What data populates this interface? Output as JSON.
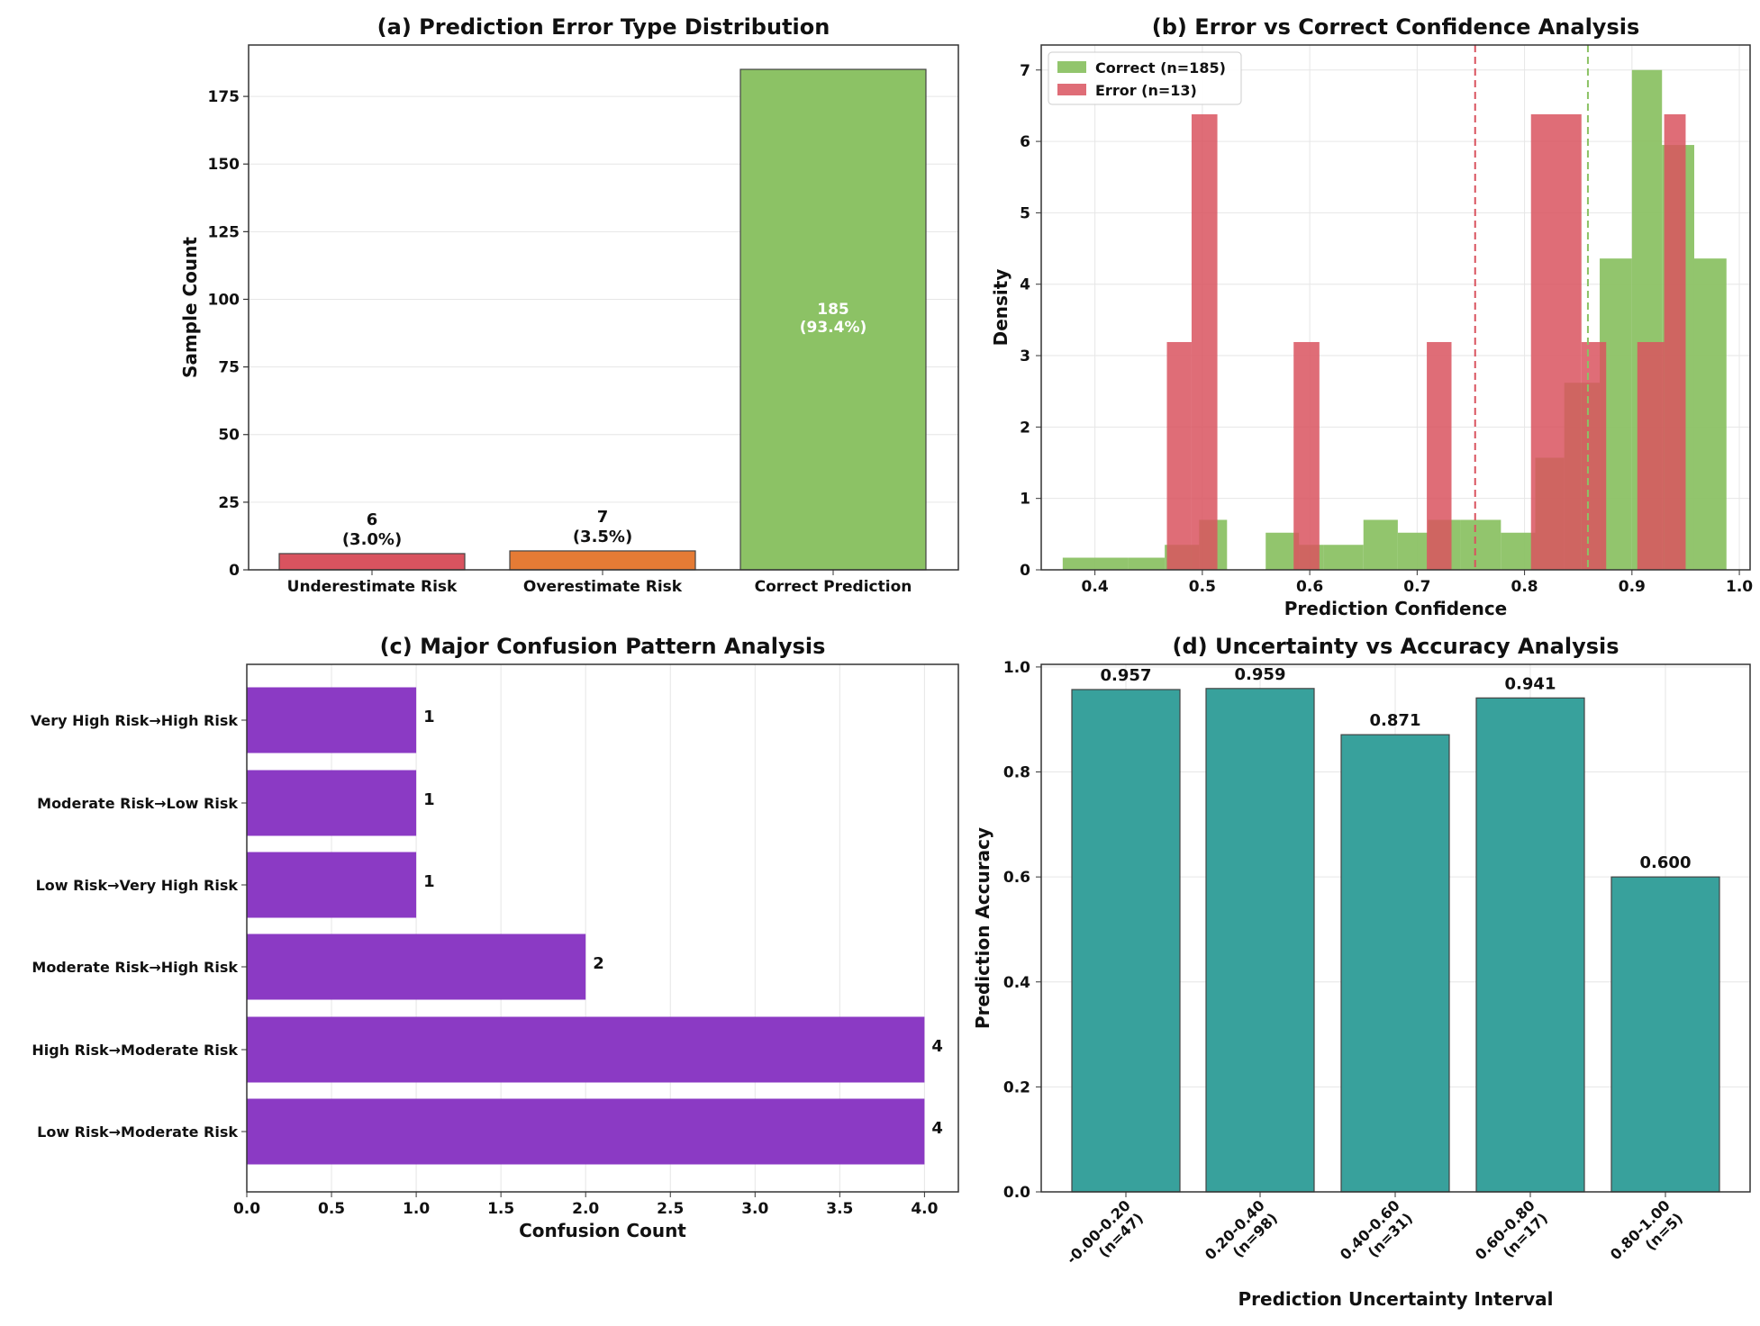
{
  "chart_data": [
    {
      "id": "a",
      "type": "bar",
      "title": "(a) Prediction Error Type Distribution",
      "xlabel": "",
      "ylabel": "Sample Count",
      "categories": [
        "Underestimate Risk",
        "Overestimate Risk",
        "Correct Prediction"
      ],
      "values": [
        6,
        7,
        185
      ],
      "value_labels": [
        [
          "6",
          "(3.0%)"
        ],
        [
          "7",
          "(3.5%)"
        ],
        [
          "185",
          "(93.4%)"
        ]
      ],
      "colors": [
        "#d9535f",
        "#e57b35",
        "#8cc265"
      ],
      "ylim": [
        0,
        194
      ],
      "yticks": [
        0,
        25,
        50,
        75,
        100,
        125,
        150,
        175
      ],
      "ytick_labels": [
        "0",
        "25",
        "50",
        "75",
        "100",
        "125",
        "150",
        "175"
      ],
      "grid": true
    },
    {
      "id": "b",
      "type": "histogram",
      "title": "(b) Error vs Correct Confidence Analysis",
      "xlabel": "Prediction Confidence",
      "ylabel": "Density",
      "xlim": [
        0.35,
        1.01
      ],
      "ylim": [
        0,
        7.35
      ],
      "xticks": [
        0.4,
        0.5,
        0.6,
        0.7,
        0.8,
        0.9,
        1.0
      ],
      "xtick_labels": [
        "0.4",
        "0.5",
        "0.6",
        "0.7",
        "0.8",
        "0.9",
        "1.0"
      ],
      "yticks": [
        0,
        1,
        2,
        3,
        4,
        5,
        6,
        7
      ],
      "ytick_labels": [
        "0",
        "1",
        "2",
        "3",
        "4",
        "5",
        "6",
        "7"
      ],
      "grid": true,
      "legend_position": "top-left",
      "series": [
        {
          "name": "Correct (n=185)",
          "color": "#8cc265",
          "opacity": 0.95,
          "bins": [
            [
              0.37,
              0.431,
              0.17
            ],
            [
              0.431,
              0.465,
              0.17
            ],
            [
              0.465,
              0.497,
              0.35
            ],
            [
              0.497,
              0.523,
              0.7
            ],
            [
              0.559,
              0.59,
              0.52
            ],
            [
              0.59,
              0.613,
              0.35
            ],
            [
              0.613,
              0.65,
              0.35
            ],
            [
              0.65,
              0.682,
              0.7
            ],
            [
              0.682,
              0.71,
              0.52
            ],
            [
              0.71,
              0.74,
              0.7
            ],
            [
              0.74,
              0.778,
              0.7
            ],
            [
              0.778,
              0.81,
              0.52
            ],
            [
              0.81,
              0.837,
              1.57
            ],
            [
              0.837,
              0.87,
              2.62
            ],
            [
              0.87,
              0.9,
              4.36
            ],
            [
              0.9,
              0.928,
              7.0
            ],
            [
              0.928,
              0.958,
              5.95
            ],
            [
              0.958,
              0.988,
              4.36
            ]
          ]
        },
        {
          "name": "Error (n=13)",
          "color": "#d9535f",
          "opacity": 0.85,
          "bins": [
            [
              0.467,
              0.49,
              3.19
            ],
            [
              0.49,
              0.514,
              6.38
            ],
            [
              0.585,
              0.609,
              3.19
            ],
            [
              0.709,
              0.732,
              3.19
            ],
            [
              0.806,
              0.853,
              6.38
            ],
            [
              0.853,
              0.876,
              3.19
            ],
            [
              0.905,
              0.93,
              3.19
            ],
            [
              0.93,
              0.95,
              6.38
            ]
          ]
        }
      ],
      "vlines": [
        {
          "x": 0.754,
          "color": "#d9535f"
        },
        {
          "x": 0.859,
          "color": "#8cc265"
        }
      ]
    },
    {
      "id": "c",
      "type": "barh",
      "title": "(c) Major Confusion Pattern Analysis",
      "xlabel": "Confusion Count",
      "ylabel": "",
      "categories": [
        "Very High Risk→High Risk",
        "Moderate Risk→Low Risk",
        "Low Risk→Very High Risk",
        "Moderate Risk→High Risk",
        "High Risk→Moderate Risk",
        "Low Risk→Moderate Risk"
      ],
      "values": [
        1,
        1,
        1,
        2,
        4,
        4
      ],
      "value_labels": [
        "1",
        "1",
        "1",
        "2",
        "4",
        "4"
      ],
      "color": "#8b3ac4",
      "xlim": [
        0,
        4.2
      ],
      "xticks": [
        0,
        0.5,
        1,
        1.5,
        2,
        2.5,
        3,
        3.5,
        4
      ],
      "xtick_labels": [
        "0.0",
        "0.5",
        "1.0",
        "1.5",
        "2.0",
        "2.5",
        "3.0",
        "3.5",
        "4.0"
      ],
      "grid": true
    },
    {
      "id": "d",
      "type": "bar",
      "title": "(d) Uncertainty vs Accuracy Analysis",
      "xlabel": "Prediction Uncertainty Interval",
      "ylabel": "Prediction Accuracy",
      "categories": [
        [
          "-0.00-0.20",
          "(n=47)"
        ],
        [
          "0.20-0.40",
          "(n=98)"
        ],
        [
          "0.40-0.60",
          "(n=31)"
        ],
        [
          "0.60-0.80",
          "(n=17)"
        ],
        [
          "0.80-1.00",
          "(n=5)"
        ]
      ],
      "values": [
        0.957,
        0.959,
        0.871,
        0.941,
        0.6
      ],
      "value_labels": [
        "0.957",
        "0.959",
        "0.871",
        "0.941",
        "0.600"
      ],
      "color": "#38a19c",
      "ylim": [
        0,
        1.005
      ],
      "yticks": [
        0,
        0.2,
        0.4,
        0.6,
        0.8,
        1.0
      ],
      "ytick_labels": [
        "0.0",
        "0.2",
        "0.4",
        "0.6",
        "0.8",
        "1.0"
      ],
      "grid": true
    }
  ]
}
